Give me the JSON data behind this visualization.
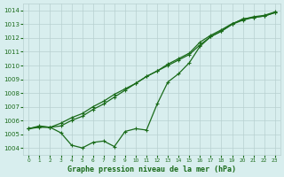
{
  "x": [
    0,
    1,
    2,
    3,
    4,
    5,
    6,
    7,
    8,
    9,
    10,
    11,
    12,
    13,
    14,
    15,
    16,
    17,
    18,
    19,
    20,
    21,
    22,
    23
  ],
  "line1": [
    1005.4,
    1005.5,
    1005.5,
    1005.8,
    1006.2,
    1006.5,
    1007.0,
    1007.4,
    1007.9,
    1008.3,
    1008.7,
    1009.2,
    1009.6,
    1010.0,
    1010.4,
    1010.8,
    1011.5,
    1012.1,
    1012.5,
    1013.0,
    1013.3,
    1013.5,
    1013.6,
    1013.85
  ],
  "line2": [
    1005.4,
    1005.6,
    1005.5,
    1005.1,
    1004.2,
    1004.0,
    1004.4,
    1004.5,
    1004.1,
    1005.2,
    1005.4,
    1005.3,
    1007.2,
    1008.8,
    1009.4,
    1010.2,
    1011.4,
    1012.1,
    1012.5,
    1013.0,
    1013.4,
    1013.5,
    1013.6,
    1013.85
  ],
  "line3": [
    1005.4,
    1005.55,
    1005.5,
    1005.6,
    1006.0,
    1006.3,
    1006.8,
    1007.2,
    1007.7,
    1008.2,
    1008.7,
    1009.2,
    1009.6,
    1010.1,
    1010.5,
    1010.9,
    1011.7,
    1012.2,
    1012.6,
    1013.05,
    1013.35,
    1013.55,
    1013.65,
    1013.9
  ],
  "line_color": "#1a6b1a",
  "bg_color": "#d8eeee",
  "grid_color": "#b8d0d0",
  "title": "Graphe pression niveau de la mer (hPa)",
  "ylim": [
    1003.5,
    1014.5
  ],
  "yticks": [
    1004,
    1005,
    1006,
    1007,
    1008,
    1009,
    1010,
    1011,
    1012,
    1013,
    1014
  ],
  "xticks": [
    0,
    1,
    2,
    3,
    4,
    5,
    6,
    7,
    8,
    9,
    10,
    11,
    12,
    13,
    14,
    15,
    16,
    17,
    18,
    19,
    20,
    21,
    22,
    23
  ],
  "marker": "+"
}
